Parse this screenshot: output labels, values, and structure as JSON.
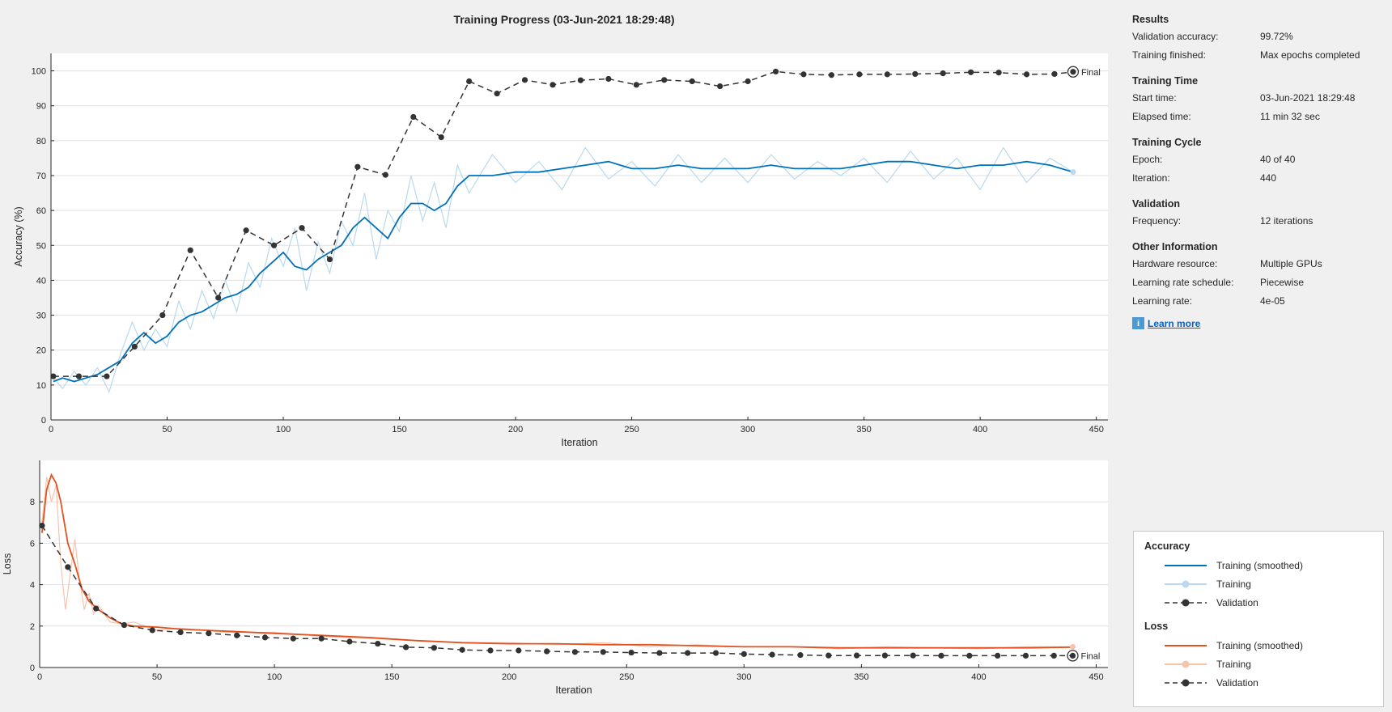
{
  "title": "Training Progress (03-Jun-2021 18:29:48)",
  "colors": {
    "acc_smoothed": "#0072bd",
    "acc_raw": "#b8d9ef",
    "loss_smoothed": "#e0521f",
    "loss_raw": "#f6c3ad",
    "validation": "#333333",
    "grid": "#e0e0e0"
  },
  "final_label": "Final",
  "sidebar": {
    "sections": [
      {
        "title": "Results",
        "rows": [
          {
            "key": "Validation accuracy:",
            "value": "99.72%"
          },
          {
            "key": "Training finished:",
            "value": "Max epochs completed"
          }
        ]
      },
      {
        "title": "Training Time",
        "rows": [
          {
            "key": "Start time:",
            "value": "03-Jun-2021 18:29:48"
          },
          {
            "key": "Elapsed time:",
            "value": "11 min 32 sec"
          }
        ]
      },
      {
        "title": "Training Cycle",
        "rows": [
          {
            "key": "Epoch:",
            "value": "40 of 40"
          },
          {
            "key": "Iteration:",
            "value": "440"
          }
        ]
      },
      {
        "title": "Validation",
        "rows": [
          {
            "key": "Frequency:",
            "value": "12 iterations"
          }
        ]
      },
      {
        "title": "Other Information",
        "rows": [
          {
            "key": "Hardware resource:",
            "value": "Multiple GPUs"
          },
          {
            "key": "Learning rate schedule:",
            "value": "Piecewise"
          },
          {
            "key": "Learning rate:",
            "value": "4e-05"
          }
        ]
      }
    ],
    "learn_more": "Learn more",
    "info_icon": "info-icon"
  },
  "legend": {
    "groups": [
      {
        "title": "Accuracy",
        "items": [
          {
            "label": "Training (smoothed)",
            "style": "acc_smoothed"
          },
          {
            "label": "Training",
            "style": "acc_raw"
          },
          {
            "label": "Validation",
            "style": "validation"
          }
        ]
      },
      {
        "title": "Loss",
        "items": [
          {
            "label": "Training (smoothed)",
            "style": "loss_smoothed"
          },
          {
            "label": "Training",
            "style": "loss_raw"
          },
          {
            "label": "Validation",
            "style": "validation"
          }
        ]
      }
    ]
  },
  "chart_data": [
    {
      "type": "line",
      "xlabel": "Iteration",
      "ylabel": "Accuracy (%)",
      "xlim": [
        0,
        455
      ],
      "ylim": [
        0,
        105
      ],
      "xticks": [
        0,
        50,
        100,
        150,
        200,
        250,
        300,
        350,
        400,
        450
      ],
      "yticks": [
        0,
        10,
        20,
        30,
        40,
        50,
        60,
        70,
        80,
        90,
        100
      ],
      "series": [
        {
          "name": "Training (smoothed)",
          "x": [
            1,
            5,
            10,
            15,
            20,
            25,
            30,
            35,
            40,
            45,
            50,
            55,
            60,
            65,
            70,
            75,
            80,
            85,
            90,
            95,
            100,
            105,
            110,
            115,
            120,
            125,
            130,
            135,
            140,
            145,
            150,
            155,
            160,
            165,
            170,
            175,
            180,
            190,
            200,
            210,
            220,
            230,
            240,
            250,
            260,
            270,
            280,
            290,
            300,
            310,
            320,
            330,
            340,
            350,
            360,
            370,
            380,
            390,
            400,
            410,
            420,
            430,
            440
          ],
          "y": [
            11,
            12,
            11,
            12,
            13,
            15,
            17,
            22,
            25,
            22,
            24,
            28,
            30,
            31,
            33,
            35,
            36,
            38,
            42,
            45,
            48,
            44,
            43,
            46,
            48,
            50,
            55,
            58,
            55,
            52,
            58,
            62,
            62,
            60,
            62,
            67,
            70,
            70,
            71,
            71,
            72,
            73,
            74,
            72,
            72,
            73,
            72,
            72,
            72,
            73,
            72,
            72,
            72,
            73,
            74,
            74,
            73,
            72,
            73,
            73,
            74,
            73,
            71
          ]
        },
        {
          "name": "Training",
          "x": [
            1,
            5,
            10,
            15,
            20,
            25,
            30,
            35,
            40,
            45,
            50,
            55,
            60,
            65,
            70,
            75,
            80,
            85,
            90,
            95,
            100,
            105,
            110,
            115,
            120,
            125,
            130,
            135,
            140,
            145,
            150,
            155,
            160,
            165,
            170,
            175,
            180,
            190,
            200,
            210,
            220,
            230,
            240,
            250,
            260,
            270,
            280,
            290,
            300,
            310,
            320,
            330,
            340,
            350,
            360,
            370,
            380,
            390,
            400,
            410,
            420,
            430,
            440
          ],
          "y": [
            12,
            9,
            14,
            10,
            15,
            8,
            19,
            28,
            20,
            26,
            21,
            34,
            26,
            37,
            29,
            40,
            31,
            45,
            38,
            52,
            44,
            55,
            37,
            51,
            42,
            57,
            50,
            65,
            46,
            60,
            54,
            70,
            57,
            68,
            55,
            73,
            65,
            76,
            68,
            74,
            66,
            78,
            69,
            74,
            67,
            76,
            68,
            75,
            68,
            76,
            69,
            74,
            70,
            75,
            68,
            77,
            69,
            75,
            66,
            78,
            68,
            75,
            71
          ]
        },
        {
          "name": "Validation",
          "x": [
            1,
            12,
            24,
            36,
            48,
            60,
            72,
            84,
            96,
            108,
            120,
            132,
            144,
            156,
            168,
            180,
            192,
            204,
            216,
            228,
            240,
            252,
            264,
            276,
            288,
            300,
            312,
            324,
            336,
            348,
            360,
            372,
            384,
            396,
            408,
            420,
            432,
            440
          ],
          "y": [
            12.5,
            12.5,
            12.5,
            21,
            30,
            48.6,
            35,
            54.3,
            50,
            55,
            46,
            72.5,
            70.2,
            86.8,
            81,
            97,
            93.5,
            97.4,
            96,
            97.3,
            97.7,
            96,
            97.4,
            97,
            95.6,
            97,
            99.8,
            99,
            98.8,
            99,
            99,
            99.1,
            99.3,
            99.6,
            99.5,
            99,
            99.1,
            99.72
          ]
        }
      ]
    },
    {
      "type": "line",
      "xlabel": "Iteration",
      "ylabel": "Loss",
      "xlim": [
        0,
        455
      ],
      "ylim": [
        0,
        10
      ],
      "xticks": [
        0,
        50,
        100,
        150,
        200,
        250,
        300,
        350,
        400,
        450
      ],
      "yticks": [
        0,
        2,
        4,
        6,
        8
      ],
      "series": [
        {
          "name": "Training (smoothed)",
          "x": [
            1,
            3,
            5,
            7,
            9,
            12,
            15,
            18,
            21,
            25,
            30,
            35,
            40,
            50,
            60,
            80,
            100,
            120,
            140,
            160,
            180,
            200,
            220,
            240,
            260,
            280,
            300,
            320,
            340,
            360,
            380,
            400,
            420,
            440
          ],
          "y": [
            6.5,
            8.6,
            9.3,
            8.9,
            8.0,
            6.0,
            5.0,
            3.8,
            3.2,
            2.8,
            2.4,
            2.1,
            2.0,
            1.95,
            1.85,
            1.75,
            1.65,
            1.55,
            1.45,
            1.3,
            1.2,
            1.15,
            1.15,
            1.1,
            1.1,
            1.05,
            1.0,
            1.0,
            0.95,
            0.95,
            0.95,
            0.95,
            0.95,
            0.98
          ]
        },
        {
          "name": "Training",
          "x": [
            1,
            3,
            5,
            7,
            9,
            11,
            13,
            15,
            17,
            19,
            21,
            23,
            25,
            30,
            35,
            40,
            50,
            60,
            80,
            100,
            120,
            140,
            160,
            180,
            200,
            220,
            240,
            260,
            280,
            300,
            320,
            340,
            360,
            380,
            400,
            420,
            440
          ],
          "y": [
            7.0,
            9.2,
            8.0,
            8.8,
            5.0,
            2.8,
            4.5,
            6.2,
            4.2,
            2.8,
            3.6,
            2.6,
            3.0,
            2.2,
            2.1,
            2.2,
            1.8,
            1.9,
            1.7,
            1.7,
            1.5,
            1.4,
            1.3,
            1.2,
            1.2,
            1.1,
            1.2,
            1.0,
            1.1,
            1.0,
            1.0,
            0.9,
            1.0,
            0.95,
            0.9,
            1.0,
            1.0
          ]
        },
        {
          "name": "Validation",
          "x": [
            1,
            12,
            24,
            36,
            48,
            60,
            72,
            84,
            96,
            108,
            120,
            132,
            144,
            156,
            168,
            180,
            192,
            204,
            216,
            228,
            240,
            252,
            264,
            276,
            288,
            300,
            312,
            324,
            336,
            348,
            360,
            372,
            384,
            396,
            408,
            420,
            432,
            440
          ],
          "y": [
            6.85,
            4.85,
            2.85,
            2.05,
            1.8,
            1.7,
            1.65,
            1.55,
            1.45,
            1.4,
            1.4,
            1.25,
            1.15,
            0.98,
            0.95,
            0.85,
            0.82,
            0.82,
            0.78,
            0.75,
            0.75,
            0.72,
            0.7,
            0.7,
            0.7,
            0.65,
            0.62,
            0.6,
            0.58,
            0.58,
            0.58,
            0.58,
            0.57,
            0.57,
            0.57,
            0.57,
            0.57,
            0.57
          ]
        }
      ]
    }
  ]
}
